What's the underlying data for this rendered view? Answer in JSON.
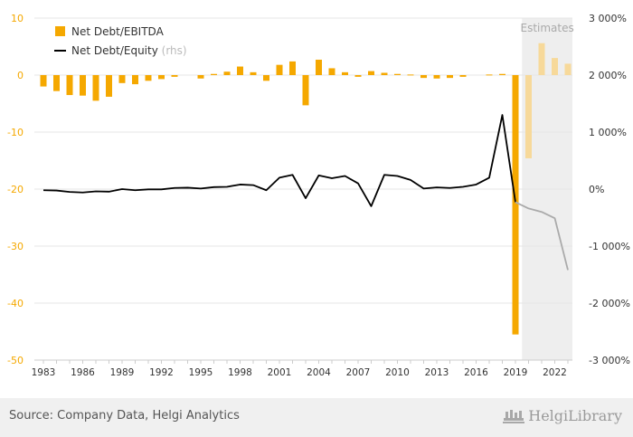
{
  "chart_data": {
    "type": "bar+line",
    "left_axis": {
      "ticks": [
        "10",
        "0",
        "-10",
        "-20",
        "-30",
        "-40",
        "-50"
      ],
      "ylim": [
        -50,
        10
      ]
    },
    "right_axis": {
      "ticks": [
        "3 000%",
        "2 000%",
        "1 000%",
        "0%",
        "-1 000%",
        "-2 000%",
        "-3 000%"
      ],
      "ylim": [
        -3000,
        3000
      ]
    },
    "x_ticks": [
      "1983",
      "1986",
      "1989",
      "1992",
      "1995",
      "1998",
      "2001",
      "2004",
      "2007",
      "2010",
      "2013",
      "2016",
      "2019",
      "2022"
    ],
    "estimates_label": "Estimates",
    "estimates_from": 2019.5,
    "years": [
      1983,
      1984,
      1985,
      1986,
      1987,
      1988,
      1989,
      1990,
      1991,
      1992,
      1993,
      1994,
      1995,
      1996,
      1997,
      1998,
      1999,
      2000,
      2001,
      2002,
      2003,
      2004,
      2005,
      2006,
      2007,
      2008,
      2009,
      2010,
      2011,
      2012,
      2013,
      2014,
      2015,
      2016,
      2017,
      2018,
      2019,
      2020,
      2021,
      2022,
      2023
    ],
    "series": [
      {
        "name": "Net Debt/EBITDA",
        "type": "bar",
        "color": "#f5a800",
        "estimate_color": "#f7d99a",
        "values": [
          -2.0,
          -2.8,
          -3.5,
          -3.6,
          -4.5,
          -3.8,
          -1.4,
          -1.6,
          -1.0,
          -0.7,
          -0.3,
          0,
          -0.6,
          0.2,
          0.6,
          1.5,
          0.5,
          -1.0,
          1.8,
          2.4,
          -5.3,
          2.7,
          1.2,
          0.5,
          -0.3,
          0.7,
          0.4,
          0.2,
          0.1,
          -0.5,
          -0.6,
          -0.5,
          -0.3,
          0,
          0.1,
          0.2,
          -45.5,
          -14.6,
          5.6,
          3.0,
          2.0
        ]
      },
      {
        "name": "Net Debt/Equity",
        "unit_label": "(rhs)",
        "type": "line",
        "color": "#000000",
        "estimate_color": "#aaaaaa",
        "values": [
          -20,
          -25,
          -50,
          -60,
          -40,
          -45,
          0,
          -20,
          -5,
          -5,
          20,
          25,
          10,
          35,
          40,
          80,
          70,
          -20,
          200,
          250,
          -160,
          240,
          190,
          230,
          100,
          -300,
          250,
          230,
          160,
          10,
          30,
          20,
          40,
          80,
          200,
          1300,
          -230,
          -340,
          -400,
          -510,
          -1420
        ]
      }
    ]
  },
  "footer": {
    "source": "Source: Company Data, Helgi Analytics",
    "logo_text": "HelgiLibrary"
  }
}
